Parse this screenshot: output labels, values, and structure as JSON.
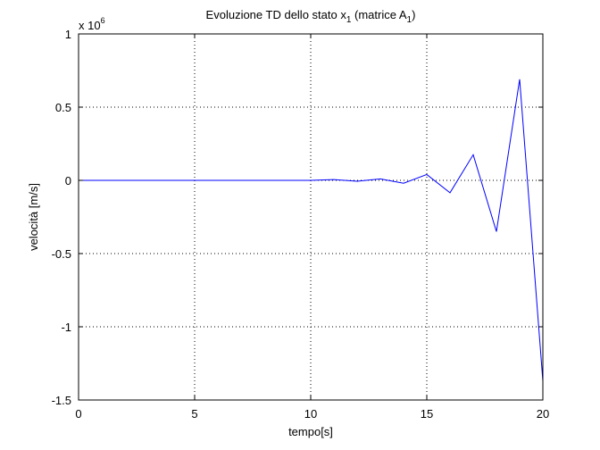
{
  "chart_data": {
    "type": "line",
    "title": {
      "prefix": "Evoluzione TD dello stato x",
      "sub1": "1",
      "middle": " (matrice A",
      "sub2": "1",
      "suffix": ")"
    },
    "xlabel": "tempo[s]",
    "ylabel": "velocità [m/s]",
    "scale_label": {
      "base": "x 10",
      "exponent": "6"
    },
    "xlim": [
      0,
      20
    ],
    "ylim": [
      -1.5,
      1
    ],
    "y_unit_multiplier": 1000000,
    "xticks": [
      0,
      5,
      10,
      15,
      20
    ],
    "xtick_labels": [
      "0",
      "5",
      "10",
      "15",
      "20"
    ],
    "yticks": [
      -1.5,
      -1,
      -0.5,
      0,
      0.5,
      1
    ],
    "ytick_labels": [
      "-1.5",
      "-1",
      "-0.5",
      "0",
      "0.5",
      "1"
    ],
    "grid": true,
    "line_color": "#0000ff",
    "series": [
      {
        "x": [
          0,
          1,
          2,
          3,
          4,
          5,
          6,
          7,
          8,
          9,
          10,
          11,
          12,
          13,
          14,
          15,
          16,
          17,
          18,
          19,
          20
        ],
        "y": [
          0,
          0,
          0,
          0,
          0,
          0,
          0,
          0,
          0,
          0,
          0,
          0.005,
          -0.006,
          0.01,
          -0.02,
          0.04,
          -0.085,
          0.175,
          -0.35,
          0.69,
          -1.37
        ]
      }
    ]
  }
}
